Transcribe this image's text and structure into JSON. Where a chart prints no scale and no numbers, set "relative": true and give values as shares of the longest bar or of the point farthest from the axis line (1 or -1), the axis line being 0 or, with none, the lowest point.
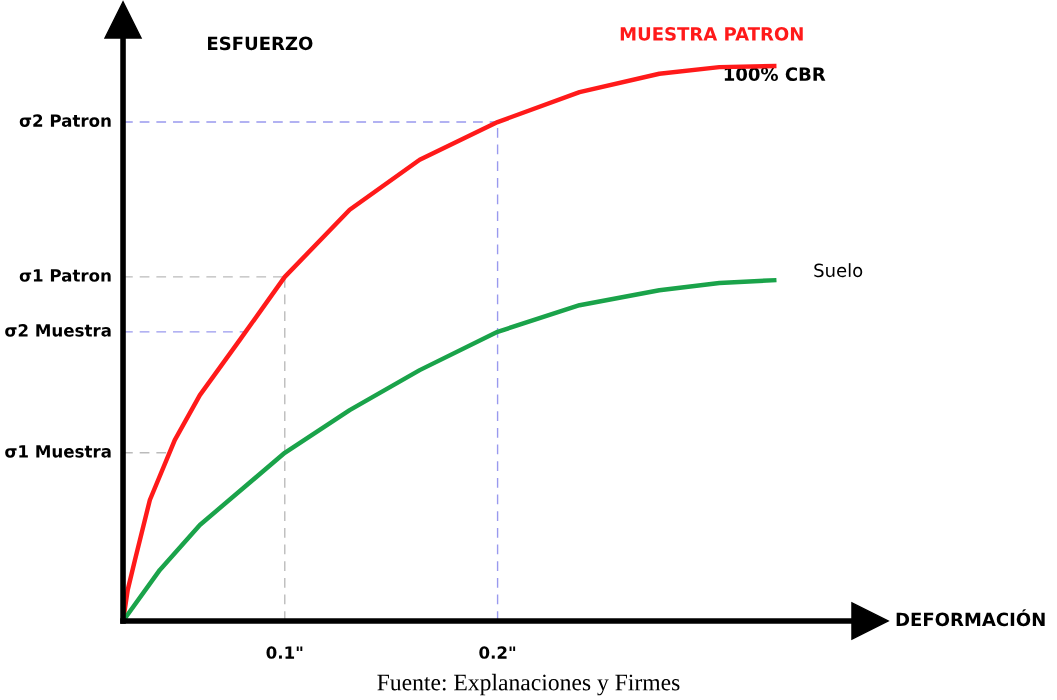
{
  "chart_data": {
    "type": "line",
    "relative": true,
    "xlabel": "DEFORMACIÓN",
    "ylabel": "ESFUERZO",
    "xlim": [
      0.024,
      0.375
    ],
    "xticks": [
      {
        "value": 0.1,
        "label": "0.1\""
      },
      {
        "value": 0.2,
        "label": "0.2\""
      }
    ],
    "legend": false,
    "grid": false,
    "marker": "none",
    "line_style": "solid",
    "series": [
      {
        "name": "MUESTRA PATRON",
        "color": "#ff1a1a",
        "x": [
          0.024,
          0.0262,
          0.0296,
          0.0366,
          0.0483,
          0.0601,
          0.0788,
          0.1,
          0.1305,
          0.1634,
          0.2,
          0.2385,
          0.276,
          0.3042,
          0.33
        ],
        "values": [
          0,
          0.056,
          0.11,
          0.218,
          0.326,
          0.407,
          0.506,
          0.62,
          0.741,
          0.831,
          0.899,
          0.953,
          0.986,
          0.998,
          1
        ]
      },
      {
        "name": "Suelo",
        "color": "#1aa34a",
        "x": [
          0.024,
          0.0413,
          0.0601,
          0.1,
          0.1305,
          0.1634,
          0.2,
          0.2385,
          0.276,
          0.3042,
          0.33
        ],
        "values": [
          0,
          0.092,
          0.173,
          0.303,
          0.38,
          0.452,
          0.521,
          0.569,
          0.596,
          0.609,
          0.614
        ]
      }
    ],
    "ref_lines": [
      {
        "axis": "y",
        "value": 0.899,
        "label": "σ2 Patron",
        "color": "#9999ee",
        "line_style": "dashed"
      },
      {
        "axis": "y",
        "value": 0.62,
        "label": "σ1 Patron",
        "color": "#bbbbbb",
        "line_style": "dashed"
      },
      {
        "axis": "y",
        "value": 0.521,
        "label": "σ2 Muestra",
        "color": "#9999ee",
        "line_style": "dashed"
      },
      {
        "axis": "y",
        "value": 0.303,
        "label": "σ1 Muestra",
        "color": "#bbbbbb",
        "line_style": "dashed"
      },
      {
        "axis": "x",
        "value": 0.1,
        "color": "#bbbbbb",
        "line_style": "dashed"
      },
      {
        "axis": "x",
        "value": 0.2,
        "color": "#9999ee",
        "line_style": "dashed"
      }
    ],
    "annotations": [
      {
        "text": "100% CBR",
        "x": 0.33,
        "y": 1
      },
      "Fuente: Explanaciones y Firmes"
    ]
  }
}
